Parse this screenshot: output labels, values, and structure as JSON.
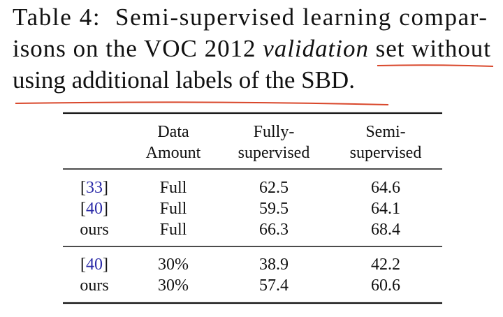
{
  "caption": {
    "lines": [
      [
        {
          "text": "Table 4:  Semi-supervised learning compar-"
        }
      ],
      [
        {
          "text": "isons on the VOC 2012 "
        },
        {
          "text": "validation",
          "italic": true
        },
        {
          "text": " set without"
        }
      ],
      [
        {
          "text": "using additional labels of the SBD."
        }
      ]
    ]
  },
  "table": {
    "header": [
      [],
      [
        "Data",
        "Amount"
      ],
      [
        "Fully-",
        "supervised"
      ],
      [
        "Semi-",
        "supervised"
      ]
    ],
    "groups": [
      [
        [
          "[33]",
          "Full",
          62.5,
          64.6
        ],
        [
          "[40]",
          "Full",
          59.5,
          64.1
        ],
        [
          "ours",
          "Full",
          66.3,
          68.4
        ]
      ],
      [
        [
          "[40]",
          "30%",
          38.9,
          42.2
        ],
        [
          "ours",
          "30%",
          57.4,
          60.6
        ]
      ]
    ]
  }
}
